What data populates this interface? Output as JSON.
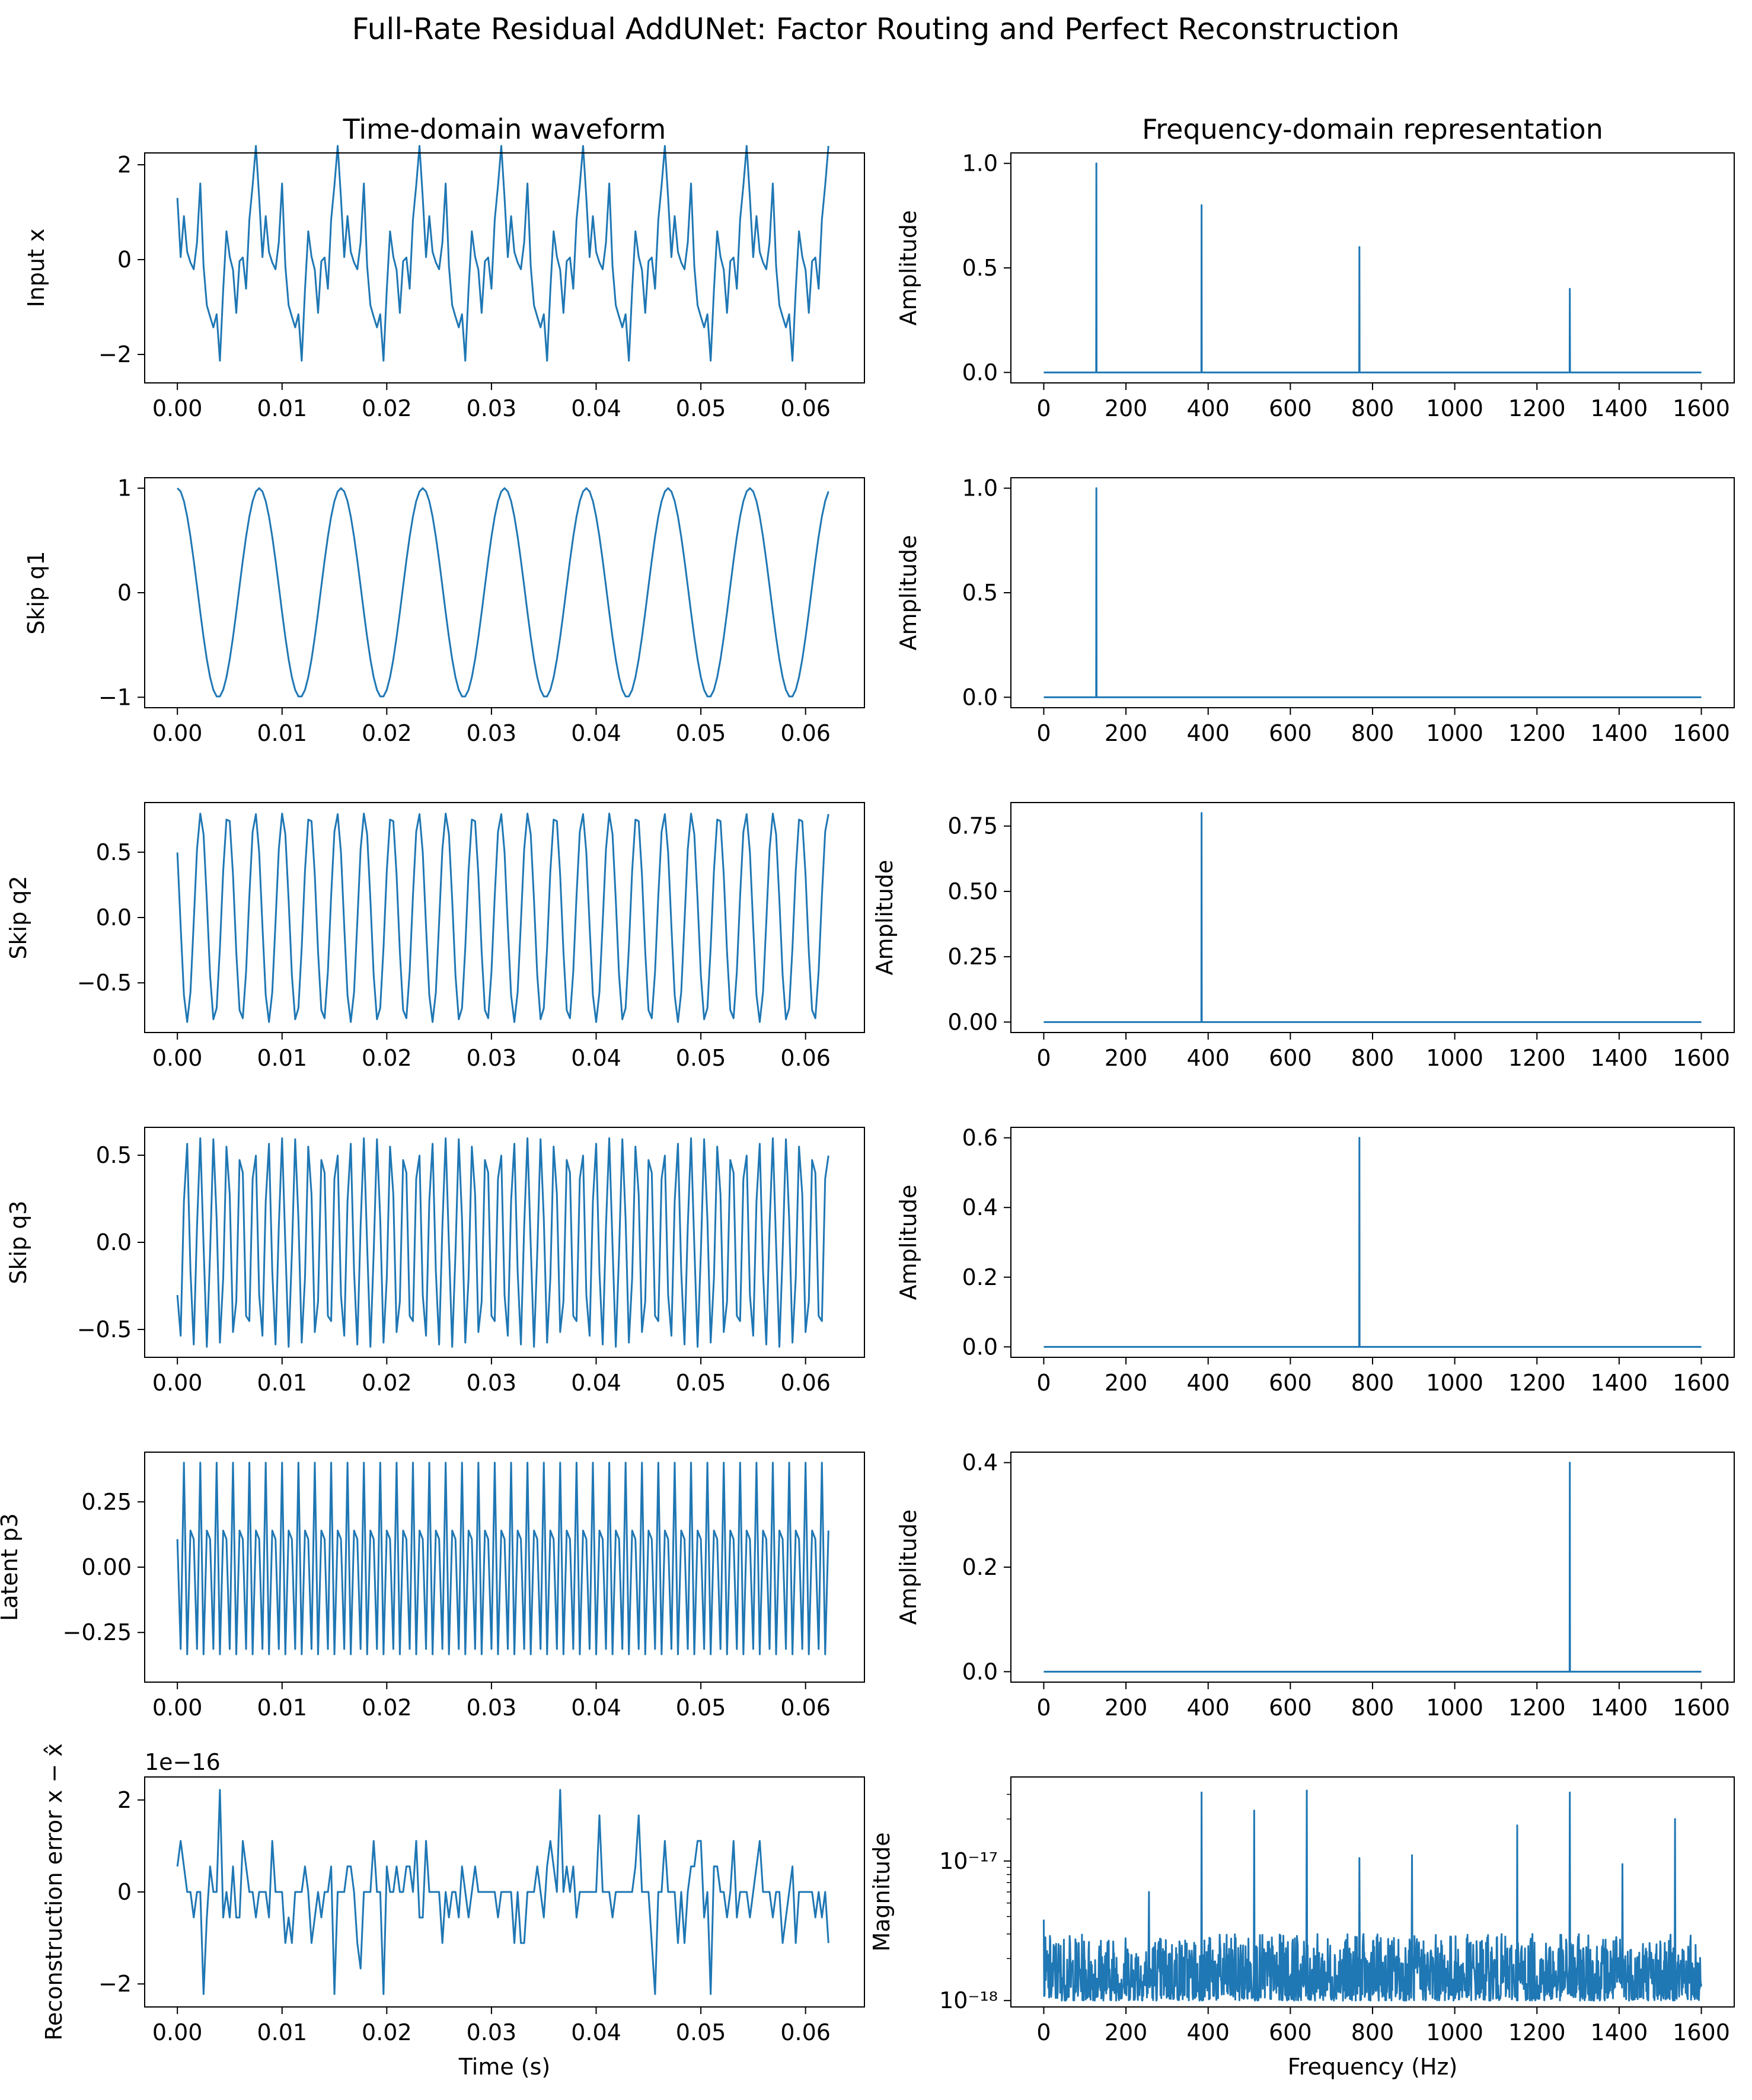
{
  "figure": {
    "title": "Full-Rate Residual AddUNet: Factor Routing and Perfect Reconstruction",
    "col_titles": [
      "Time-domain waveform",
      "Frequency-domain representation"
    ]
  },
  "colors": {
    "line": "#1f77b4",
    "axes": "#000000",
    "background": "#ffffff"
  },
  "chart_data": [
    {
      "type": "line",
      "panel": "time-input",
      "title": "Time-domain waveform",
      "xlabel": "",
      "ylabel": "Input x",
      "xlim": [
        -0.003125,
        0.065625
      ],
      "ylim": [
        -2.6,
        2.25
      ],
      "xticks": [
        0,
        0.01,
        0.02,
        0.03,
        0.04,
        0.05,
        0.06
      ],
      "xticklabels": [
        "0.00",
        "0.01",
        "0.02",
        "0.03",
        "0.04",
        "0.05",
        "0.06"
      ],
      "yticks": [
        -2,
        0,
        2
      ],
      "yticklabels": [
        "−2",
        "0",
        "2"
      ],
      "signal": {
        "sample_rate_hz": 3200,
        "samples": 200,
        "components": [
          {
            "freq_hz": 128,
            "amp": 1.0,
            "phase": 0
          },
          {
            "freq_hz": 384,
            "amp": 0.8,
            "phase": 0.9
          },
          {
            "freq_hz": 768,
            "amp": 0.6,
            "phase": 2.1
          },
          {
            "freq_hz": 1280,
            "amp": 0.4,
            "phase": 1.3
          }
        ]
      }
    },
    {
      "type": "line",
      "panel": "freq-input",
      "title": "Frequency-domain representation",
      "xlabel": "",
      "ylabel": "Amplitude",
      "xlim": [
        -80,
        1680
      ],
      "ylim": [
        -0.05,
        1.05
      ],
      "xticks": [
        0,
        200,
        400,
        600,
        800,
        1000,
        1200,
        1400,
        1600
      ],
      "xticklabels": [
        "0",
        "200",
        "400",
        "600",
        "800",
        "1000",
        "1200",
        "1400",
        "1600"
      ],
      "yticks": [
        0,
        0.5,
        1.0
      ],
      "yticklabels": [
        "0.0",
        "0.5",
        "1.0"
      ],
      "spectrum": {
        "x_max": 1600,
        "peaks": [
          [
            128,
            1.0
          ],
          [
            384,
            0.8
          ],
          [
            768,
            0.6
          ],
          [
            1280,
            0.4
          ]
        ]
      }
    },
    {
      "type": "line",
      "panel": "time-q1",
      "xlabel": "",
      "ylabel": "Skip q1",
      "xlim": [
        -0.003125,
        0.065625
      ],
      "ylim": [
        -1.1,
        1.1
      ],
      "xticks": [
        0,
        0.01,
        0.02,
        0.03,
        0.04,
        0.05,
        0.06
      ],
      "xticklabels": [
        "0.00",
        "0.01",
        "0.02",
        "0.03",
        "0.04",
        "0.05",
        "0.06"
      ],
      "yticks": [
        -1,
        0,
        1
      ],
      "yticklabels": [
        "−1",
        "0",
        "1"
      ],
      "signal": {
        "sample_rate_hz": 3200,
        "samples": 200,
        "components": [
          {
            "freq_hz": 128,
            "amp": 1.0,
            "phase": 0
          }
        ]
      }
    },
    {
      "type": "line",
      "panel": "freq-q1",
      "xlabel": "",
      "ylabel": "Amplitude",
      "xlim": [
        -80,
        1680
      ],
      "ylim": [
        -0.05,
        1.05
      ],
      "xticks": [
        0,
        200,
        400,
        600,
        800,
        1000,
        1200,
        1400,
        1600
      ],
      "xticklabels": [
        "0",
        "200",
        "400",
        "600",
        "800",
        "1000",
        "1200",
        "1400",
        "1600"
      ],
      "yticks": [
        0,
        0.5,
        1.0
      ],
      "yticklabels": [
        "0.0",
        "0.5",
        "1.0"
      ],
      "spectrum": {
        "x_max": 1600,
        "peaks": [
          [
            128,
            1.0
          ]
        ]
      }
    },
    {
      "type": "line",
      "panel": "time-q2",
      "xlabel": "",
      "ylabel": "Skip q2",
      "xlim": [
        -0.003125,
        0.065625
      ],
      "ylim": [
        -0.88,
        0.88
      ],
      "xticks": [
        0,
        0.01,
        0.02,
        0.03,
        0.04,
        0.05,
        0.06
      ],
      "xticklabels": [
        "0.00",
        "0.01",
        "0.02",
        "0.03",
        "0.04",
        "0.05",
        "0.06"
      ],
      "yticks": [
        -0.5,
        0,
        0.5
      ],
      "yticklabels": [
        "−0.5",
        "0.0",
        "0.5"
      ],
      "signal": {
        "sample_rate_hz": 3200,
        "samples": 200,
        "components": [
          {
            "freq_hz": 384,
            "amp": 0.8,
            "phase": 0.9
          }
        ]
      }
    },
    {
      "type": "line",
      "panel": "freq-q2",
      "xlabel": "",
      "ylabel": "Amplitude",
      "xlim": [
        -80,
        1680
      ],
      "ylim": [
        -0.04,
        0.84
      ],
      "xticks": [
        0,
        200,
        400,
        600,
        800,
        1000,
        1200,
        1400,
        1600
      ],
      "xticklabels": [
        "0",
        "200",
        "400",
        "600",
        "800",
        "1000",
        "1200",
        "1400",
        "1600"
      ],
      "yticks": [
        0,
        0.25,
        0.5,
        0.75
      ],
      "yticklabels": [
        "0.00",
        "0.25",
        "0.50",
        "0.75"
      ],
      "spectrum": {
        "x_max": 1600,
        "peaks": [
          [
            384,
            0.8
          ]
        ]
      }
    },
    {
      "type": "line",
      "panel": "time-q3",
      "xlabel": "",
      "ylabel": "Skip q3",
      "xlim": [
        -0.003125,
        0.065625
      ],
      "ylim": [
        -0.66,
        0.66
      ],
      "xticks": [
        0,
        0.01,
        0.02,
        0.03,
        0.04,
        0.05,
        0.06
      ],
      "xticklabels": [
        "0.00",
        "0.01",
        "0.02",
        "0.03",
        "0.04",
        "0.05",
        "0.06"
      ],
      "yticks": [
        -0.5,
        0,
        0.5
      ],
      "yticklabels": [
        "−0.5",
        "0.0",
        "0.5"
      ],
      "signal": {
        "sample_rate_hz": 3200,
        "samples": 200,
        "components": [
          {
            "freq_hz": 768,
            "amp": 0.6,
            "phase": 2.1
          }
        ]
      }
    },
    {
      "type": "line",
      "panel": "freq-q3",
      "xlabel": "",
      "ylabel": "Amplitude",
      "xlim": [
        -80,
        1680
      ],
      "ylim": [
        -0.03,
        0.63
      ],
      "xticks": [
        0,
        200,
        400,
        600,
        800,
        1000,
        1200,
        1400,
        1600
      ],
      "xticklabels": [
        "0",
        "200",
        "400",
        "600",
        "800",
        "1000",
        "1200",
        "1400",
        "1600"
      ],
      "yticks": [
        0,
        0.2,
        0.4,
        0.6
      ],
      "yticklabels": [
        "0.0",
        "0.2",
        "0.4",
        "0.6"
      ],
      "spectrum": {
        "x_max": 1600,
        "peaks": [
          [
            768,
            0.6
          ]
        ]
      }
    },
    {
      "type": "line",
      "panel": "time-p3",
      "xlabel": "",
      "ylabel": "Latent p3",
      "xlim": [
        -0.003125,
        0.065625
      ],
      "ylim": [
        -0.44,
        0.44
      ],
      "xticks": [
        0,
        0.01,
        0.02,
        0.03,
        0.04,
        0.05,
        0.06
      ],
      "xticklabels": [
        "0.00",
        "0.01",
        "0.02",
        "0.03",
        "0.04",
        "0.05",
        "0.06"
      ],
      "yticks": [
        -0.25,
        0,
        0.25
      ],
      "yticklabels": [
        "−0.25",
        "0.00",
        "0.25"
      ],
      "signal": {
        "sample_rate_hz": 3200,
        "samples": 200,
        "components": [
          {
            "freq_hz": 1280,
            "amp": 0.4,
            "phase": 1.3
          }
        ]
      }
    },
    {
      "type": "line",
      "panel": "freq-p3",
      "xlabel": "",
      "ylabel": "Amplitude",
      "xlim": [
        -80,
        1680
      ],
      "ylim": [
        -0.02,
        0.42
      ],
      "xticks": [
        0,
        200,
        400,
        600,
        800,
        1000,
        1200,
        1400,
        1600
      ],
      "xticklabels": [
        "0",
        "200",
        "400",
        "600",
        "800",
        "1000",
        "1200",
        "1400",
        "1600"
      ],
      "yticks": [
        0,
        0.2,
        0.4
      ],
      "yticklabels": [
        "0.0",
        "0.2",
        "0.4"
      ],
      "spectrum": {
        "x_max": 1600,
        "peaks": [
          [
            1280,
            0.4
          ]
        ]
      }
    },
    {
      "type": "line",
      "panel": "time-err",
      "xlabel": "Time (s)",
      "ylabel": "Reconstruction error x − x̂",
      "offset_text": "1e−16",
      "xlim": [
        -0.003125,
        0.065625
      ],
      "ylim": [
        -2.5,
        2.5
      ],
      "xticks": [
        0,
        0.01,
        0.02,
        0.03,
        0.04,
        0.05,
        0.06
      ],
      "xticklabels": [
        "0.00",
        "0.01",
        "0.02",
        "0.03",
        "0.04",
        "0.05",
        "0.06"
      ],
      "yticks": [
        -2,
        0,
        2
      ],
      "yticklabels": [
        "−2",
        "0",
        "2"
      ],
      "quantized_noise": {
        "samples": 200,
        "step": 0.555,
        "max_level": 4
      }
    },
    {
      "type": "line",
      "panel": "freq-err",
      "xlabel": "Frequency (Hz)",
      "ylabel": "Magnitude",
      "yscale": "log",
      "xlim": [
        -80,
        1680
      ],
      "ylim": [
        9e-19,
        4e-17
      ],
      "xticks": [
        0,
        200,
        400,
        600,
        800,
        1000,
        1200,
        1400,
        1600
      ],
      "xticklabels": [
        "0",
        "200",
        "400",
        "600",
        "800",
        "1000",
        "1200",
        "1400",
        "1600"
      ],
      "yticks": [
        1e-18,
        1e-17
      ],
      "yticklabels": [
        "10⁻¹⁸",
        "10⁻¹⁷"
      ],
      "noise_floor": {
        "points": 1601,
        "low": 1e-18,
        "high": 3e-18,
        "spikes": [
          [
            256,
            6e-18
          ],
          [
            384,
            3.1e-17
          ],
          [
            512,
            2.3e-17
          ],
          [
            640,
            3.2e-17
          ],
          [
            768,
            1.05e-17
          ],
          [
            896,
            1.1e-17
          ],
          [
            1152,
            1.8e-17
          ],
          [
            1280,
            3.1e-17
          ],
          [
            1408,
            9.5e-18
          ],
          [
            1536,
            2e-17
          ]
        ]
      }
    }
  ]
}
